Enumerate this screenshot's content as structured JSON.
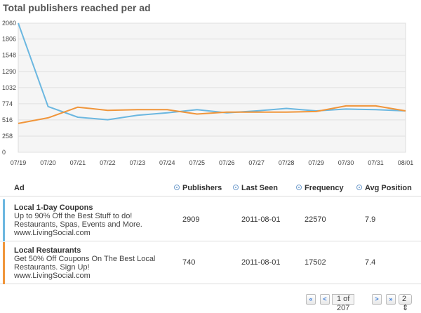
{
  "title": "Total publishers reached per ad",
  "chart_data": {
    "type": "line",
    "x": [
      "07/19",
      "07/20",
      "07/21",
      "07/22",
      "07/23",
      "07/24",
      "07/25",
      "07/26",
      "07/27",
      "07/28",
      "07/29",
      "07/30",
      "07/31",
      "08/01"
    ],
    "yticks": [
      "2060",
      "1806",
      "1548",
      "1290",
      "1032",
      "774",
      "516",
      "258",
      "0"
    ],
    "ylim": [
      0,
      2060
    ],
    "grid": true,
    "series": [
      {
        "color": "#6bb7e0",
        "values": [
          2060,
          730,
          560,
          520,
          590,
          630,
          680,
          630,
          660,
          700,
          660,
          690,
          680,
          660
        ]
      },
      {
        "color": "#f0953a",
        "values": [
          460,
          550,
          720,
          670,
          680,
          680,
          610,
          640,
          640,
          640,
          650,
          740,
          740,
          660
        ]
      }
    ]
  },
  "table": {
    "headers": {
      "ad": "Ad",
      "publishers": "Publishers",
      "last_seen": "Last Seen",
      "frequency": "Frequency",
      "avg_position": "Avg Position"
    },
    "rows": [
      {
        "color": "#6bb7e0",
        "headline": "Local 1-Day Coupons",
        "description": "Up to 90% Off the Best Stuff to do! Restaurants, Spas, Events and More.",
        "url": "www.LivingSocial.com",
        "publishers": "2909",
        "last_seen": "2011-08-01",
        "frequency": "22570",
        "avg_position": "7.9"
      },
      {
        "color": "#f0953a",
        "headline": "Local Restaurants",
        "description": "Get 50% Off Coupons On The Best Local Restaurants. Sign Up!",
        "url": "www.LivingSocial.com",
        "publishers": "740",
        "last_seen": "2011-08-01",
        "frequency": "17502",
        "avg_position": "7.4"
      }
    ]
  },
  "pager": {
    "first": "«",
    "prev": "<",
    "info": "1 of 207",
    "next": ">",
    "last": "»",
    "per_page": "2"
  }
}
